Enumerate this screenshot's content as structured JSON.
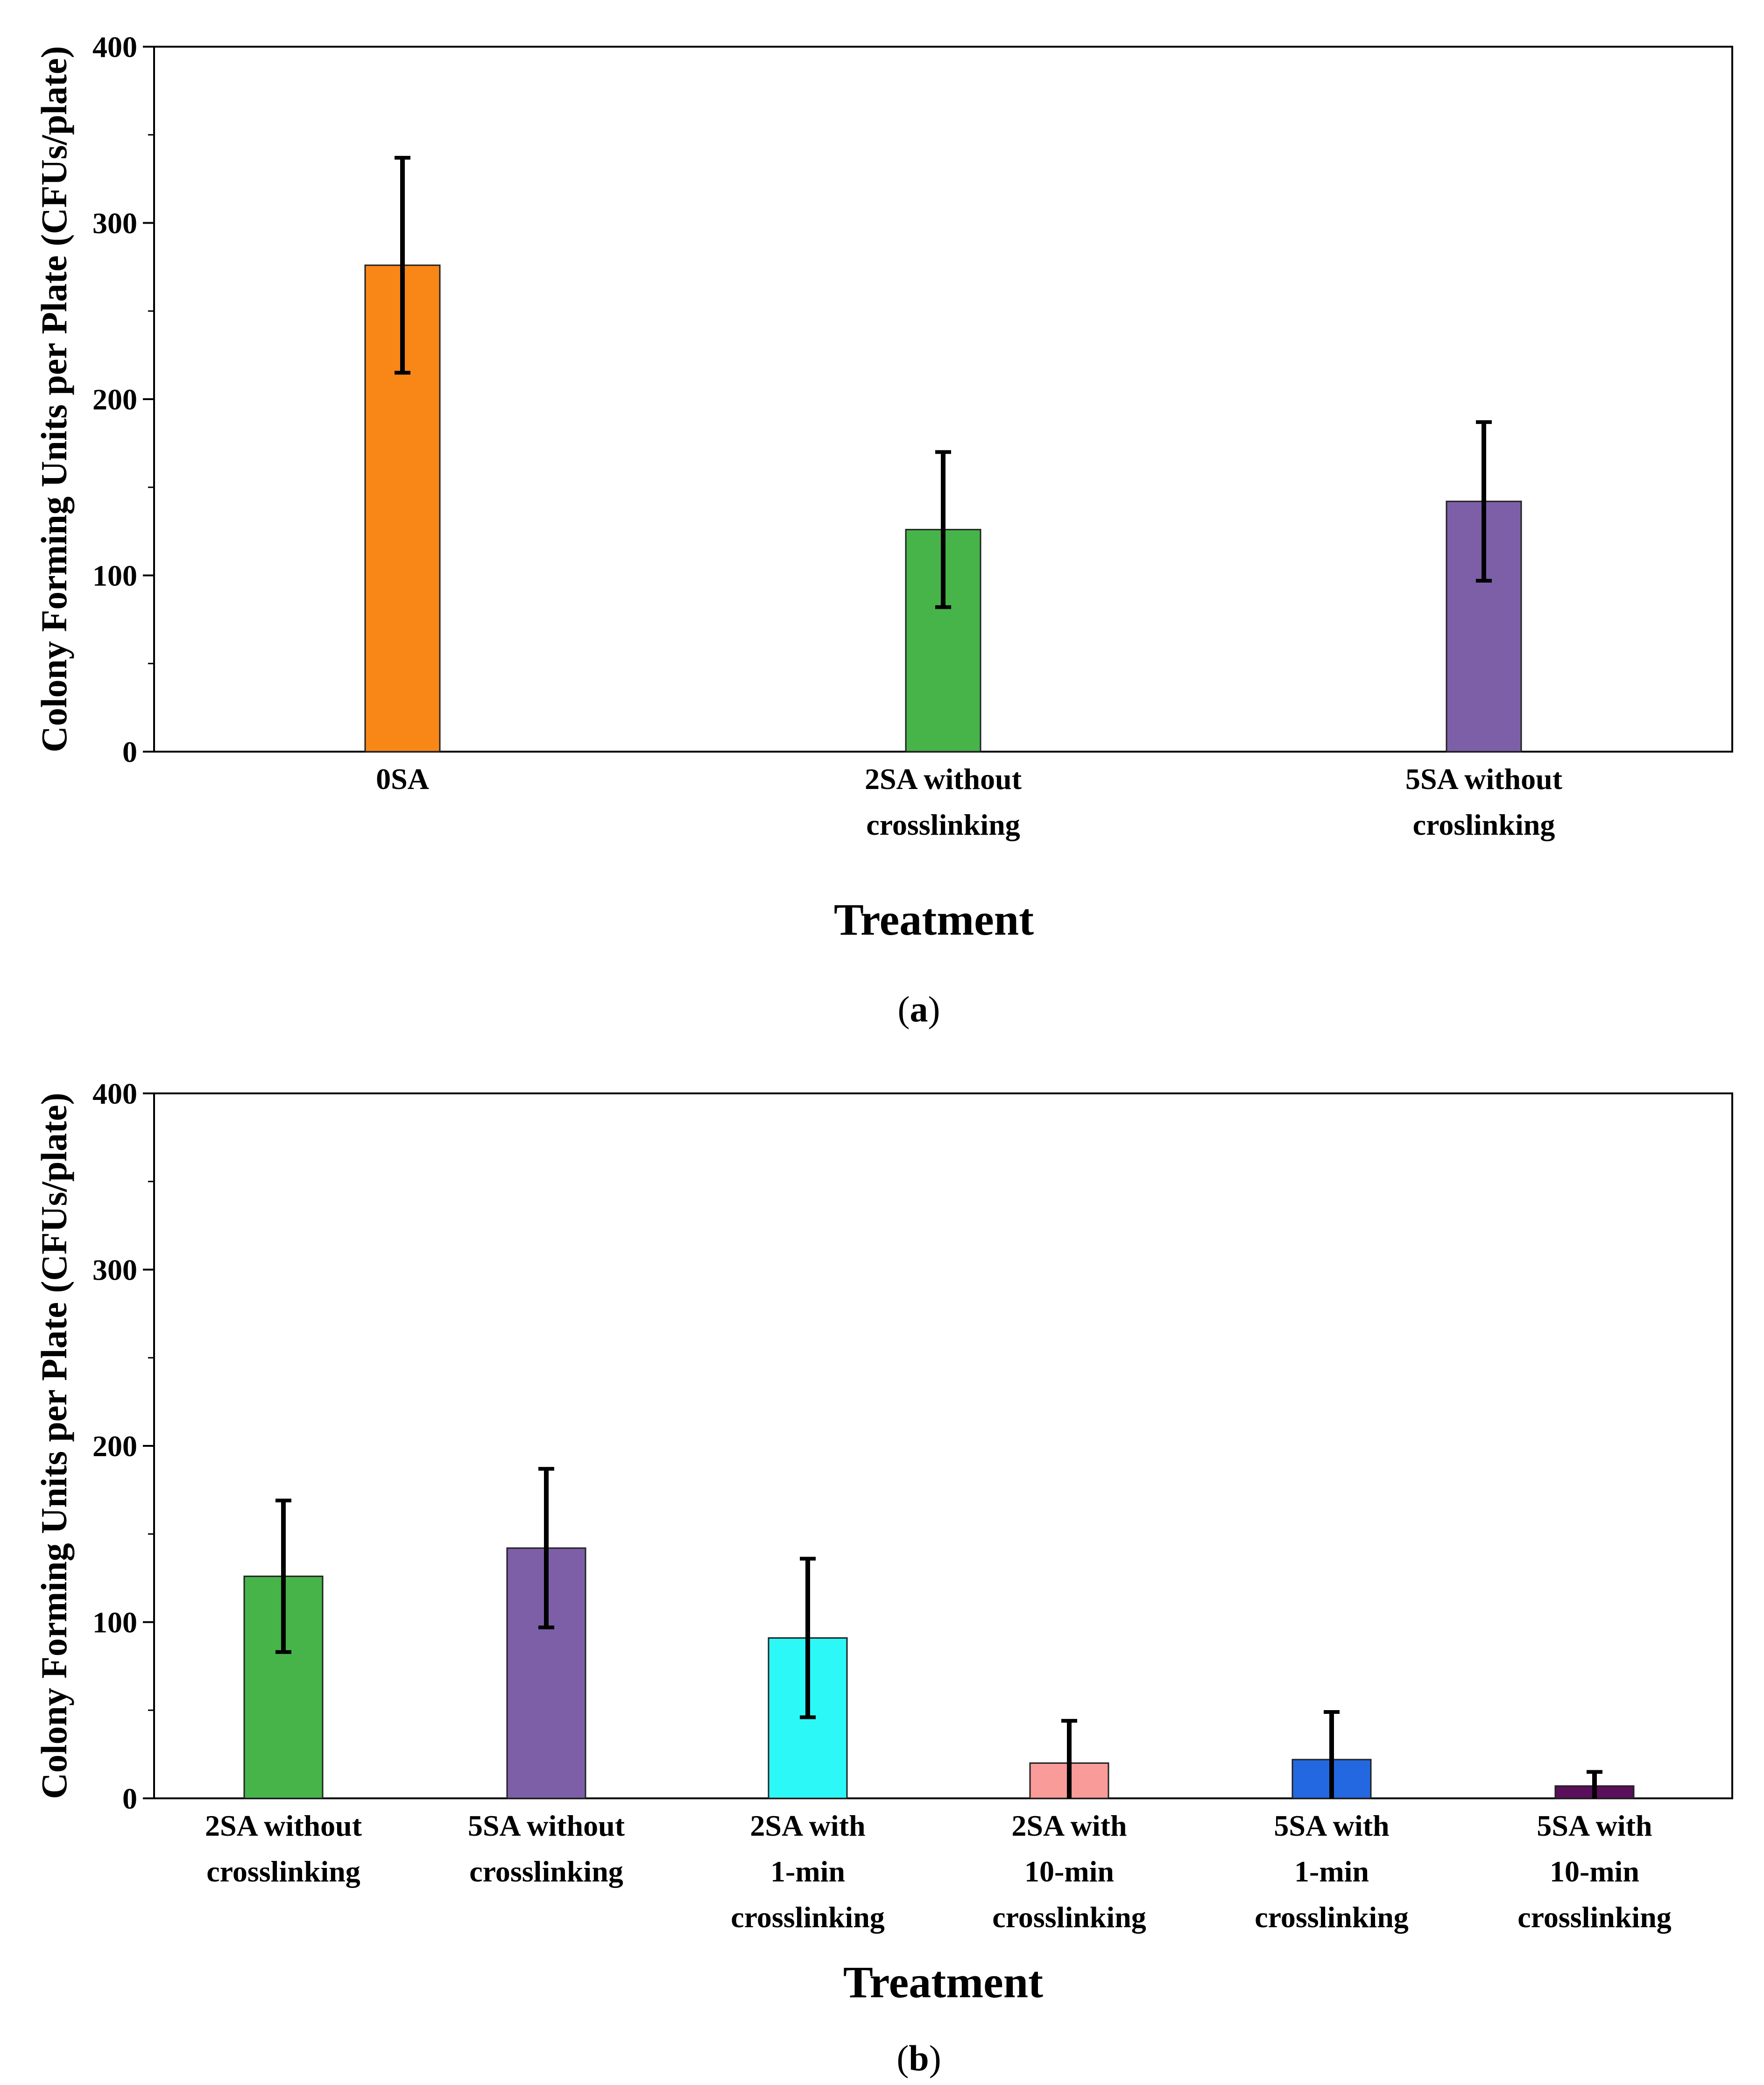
{
  "chart_data": [
    {
      "type": "bar",
      "panel_label": "a",
      "xlabel": "Treatment",
      "ylabel": "Colony Forming Units per Plate (CFUs/plate)",
      "ylim": [
        0,
        400
      ],
      "yticks": [
        0,
        100,
        200,
        300,
        400
      ],
      "categories": [
        [
          "0SA"
        ],
        [
          "2SA without",
          "crosslinking"
        ],
        [
          "5SA without",
          "croslinking"
        ]
      ],
      "values": [
        276,
        126,
        142
      ],
      "errors": [
        61,
        44,
        45
      ],
      "colors": [
        "#f98718",
        "#47b449",
        "#7d5fa8"
      ]
    },
    {
      "type": "bar",
      "panel_label": "b",
      "xlabel": "Treatment",
      "ylabel": "Colony Forming Units per Plate (CFUs/plate)",
      "ylim": [
        0,
        400
      ],
      "yticks": [
        0,
        100,
        200,
        300,
        400
      ],
      "categories": [
        [
          "2SA without",
          "crosslinking"
        ],
        [
          "5SA  without",
          "crosslinking"
        ],
        [
          "2SA with",
          "1-min",
          "crosslinking"
        ],
        [
          "2SA with",
          "10-min",
          "crosslinking"
        ],
        [
          "5SA with",
          "1-min",
          "crosslinking"
        ],
        [
          "5SA with",
          "10-min",
          "crosslinking"
        ]
      ],
      "values": [
        126,
        142,
        91,
        20,
        22,
        7
      ],
      "errors": [
        43,
        45,
        45,
        24,
        27,
        8
      ],
      "colors": [
        "#47b449",
        "#7d5fa8",
        "#2df8f8",
        "#f99b98",
        "#2368e0",
        "#5a0f5a"
      ]
    }
  ]
}
